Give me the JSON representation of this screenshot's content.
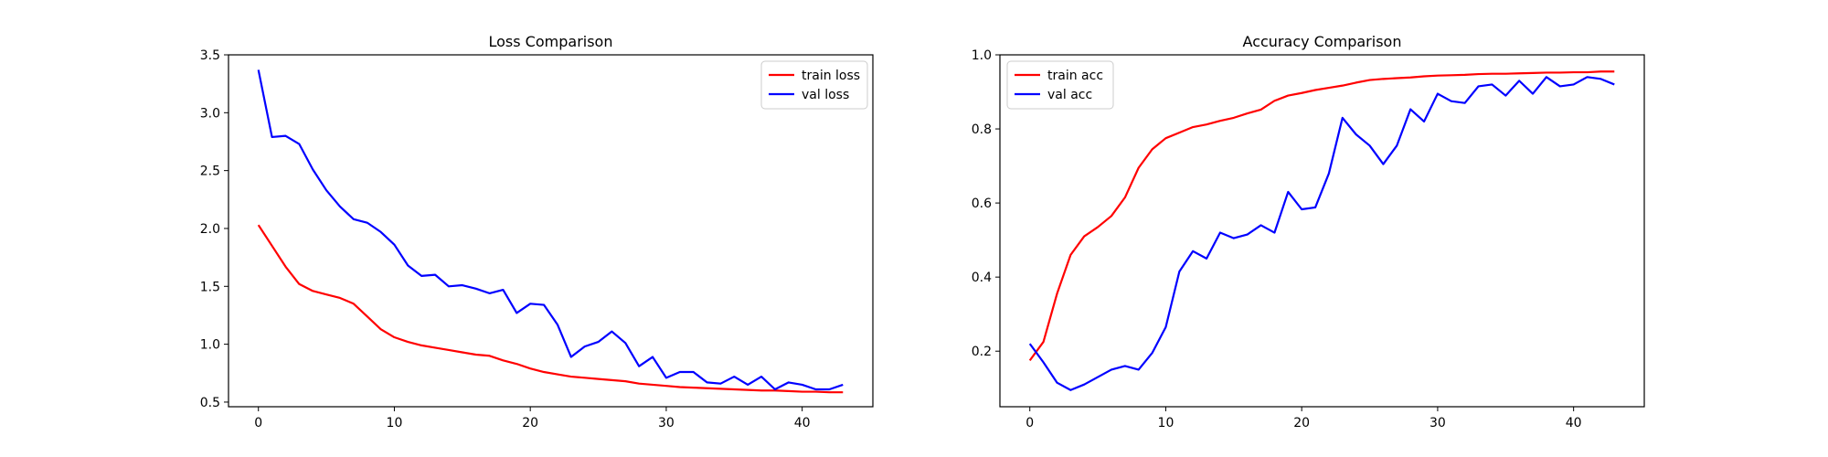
{
  "chart_data": [
    {
      "type": "line",
      "title": "Loss Comparison",
      "xlabel": "",
      "ylabel": "",
      "xlim": [
        -2.2,
        45.2
      ],
      "ylim": [
        0.46,
        3.5
      ],
      "xticks": [
        0,
        10,
        20,
        30,
        40
      ],
      "yticks": [
        0.5,
        1.0,
        1.5,
        2.0,
        2.5,
        3.0,
        3.5
      ],
      "ytick_labels": [
        "0.5",
        "1.0",
        "1.5",
        "2.0",
        "2.5",
        "3.0",
        "3.5"
      ],
      "legend_position": "upper-right",
      "grid": false,
      "series": [
        {
          "name": "train loss",
          "color": "#ff0000",
          "x": [
            0,
            1,
            2,
            3,
            4,
            5,
            6,
            7,
            8,
            9,
            10,
            11,
            12,
            13,
            14,
            15,
            16,
            17,
            18,
            19,
            20,
            21,
            22,
            23,
            24,
            25,
            26,
            27,
            28,
            29,
            30,
            31,
            32,
            33,
            34,
            35,
            36,
            37,
            38,
            39,
            40,
            41,
            42,
            43
          ],
          "values": [
            2.03,
            1.85,
            1.67,
            1.52,
            1.46,
            1.43,
            1.4,
            1.35,
            1.24,
            1.13,
            1.06,
            1.02,
            0.99,
            0.97,
            0.95,
            0.93,
            0.91,
            0.9,
            0.86,
            0.83,
            0.79,
            0.76,
            0.74,
            0.72,
            0.71,
            0.7,
            0.69,
            0.68,
            0.66,
            0.65,
            0.64,
            0.63,
            0.625,
            0.62,
            0.615,
            0.61,
            0.605,
            0.6,
            0.6,
            0.595,
            0.59,
            0.59,
            0.585,
            0.585
          ]
        },
        {
          "name": "val loss",
          "color": "#0000ff",
          "x": [
            0,
            1,
            2,
            3,
            4,
            5,
            6,
            7,
            8,
            9,
            10,
            11,
            12,
            13,
            14,
            15,
            16,
            17,
            18,
            19,
            20,
            21,
            22,
            23,
            24,
            25,
            26,
            27,
            28,
            29,
            30,
            31,
            32,
            33,
            34,
            35,
            36,
            37,
            38,
            39,
            40,
            41,
            42,
            43
          ],
          "values": [
            3.37,
            2.79,
            2.8,
            2.73,
            2.51,
            2.33,
            2.19,
            2.08,
            2.05,
            1.97,
            1.86,
            1.68,
            1.59,
            1.6,
            1.5,
            1.51,
            1.48,
            1.44,
            1.47,
            1.27,
            1.35,
            1.34,
            1.17,
            0.89,
            0.98,
            1.02,
            1.11,
            1.01,
            0.81,
            0.89,
            0.71,
            0.76,
            0.76,
            0.67,
            0.66,
            0.72,
            0.65,
            0.72,
            0.61,
            0.67,
            0.65,
            0.61,
            0.61,
            0.65
          ]
        }
      ]
    },
    {
      "type": "line",
      "title": "Accuracy Comparison",
      "xlabel": "",
      "ylabel": "",
      "xlim": [
        -2.2,
        45.2
      ],
      "ylim": [
        0.05,
        1.0
      ],
      "xticks": [
        0,
        10,
        20,
        30,
        40
      ],
      "yticks": [
        0.2,
        0.4,
        0.6,
        0.8,
        1.0
      ],
      "ytick_labels": [
        "0.2",
        "0.4",
        "0.6",
        "0.8",
        "1.0"
      ],
      "legend_position": "upper-left",
      "grid": false,
      "series": [
        {
          "name": "train acc",
          "color": "#ff0000",
          "x": [
            0,
            1,
            2,
            3,
            4,
            5,
            6,
            7,
            8,
            9,
            10,
            11,
            12,
            13,
            14,
            15,
            16,
            17,
            18,
            19,
            20,
            21,
            22,
            23,
            24,
            25,
            26,
            27,
            28,
            29,
            30,
            31,
            32,
            33,
            34,
            35,
            36,
            37,
            38,
            39,
            40,
            41,
            42,
            43
          ],
          "values": [
            0.175,
            0.225,
            0.355,
            0.46,
            0.51,
            0.535,
            0.565,
            0.615,
            0.695,
            0.745,
            0.775,
            0.79,
            0.805,
            0.812,
            0.822,
            0.83,
            0.842,
            0.852,
            0.876,
            0.89,
            0.897,
            0.905,
            0.911,
            0.917,
            0.925,
            0.932,
            0.935,
            0.937,
            0.939,
            0.942,
            0.944,
            0.945,
            0.946,
            0.948,
            0.949,
            0.949,
            0.95,
            0.951,
            0.952,
            0.952,
            0.953,
            0.953,
            0.955,
            0.955
          ]
        },
        {
          "name": "val acc",
          "color": "#0000ff",
          "x": [
            0,
            1,
            2,
            3,
            4,
            5,
            6,
            7,
            8,
            9,
            10,
            11,
            12,
            13,
            14,
            15,
            16,
            17,
            18,
            19,
            20,
            21,
            22,
            23,
            24,
            25,
            26,
            27,
            28,
            29,
            30,
            31,
            32,
            33,
            34,
            35,
            36,
            37,
            38,
            39,
            40,
            41,
            42,
            43
          ],
          "values": [
            0.22,
            0.17,
            0.115,
            0.095,
            0.11,
            0.13,
            0.15,
            0.16,
            0.15,
            0.195,
            0.265,
            0.415,
            0.47,
            0.45,
            0.52,
            0.505,
            0.515,
            0.54,
            0.52,
            0.63,
            0.583,
            0.588,
            0.68,
            0.83,
            0.785,
            0.755,
            0.705,
            0.755,
            0.853,
            0.82,
            0.895,
            0.875,
            0.87,
            0.915,
            0.92,
            0.89,
            0.93,
            0.895,
            0.94,
            0.915,
            0.92,
            0.94,
            0.935,
            0.92
          ]
        }
      ]
    }
  ]
}
